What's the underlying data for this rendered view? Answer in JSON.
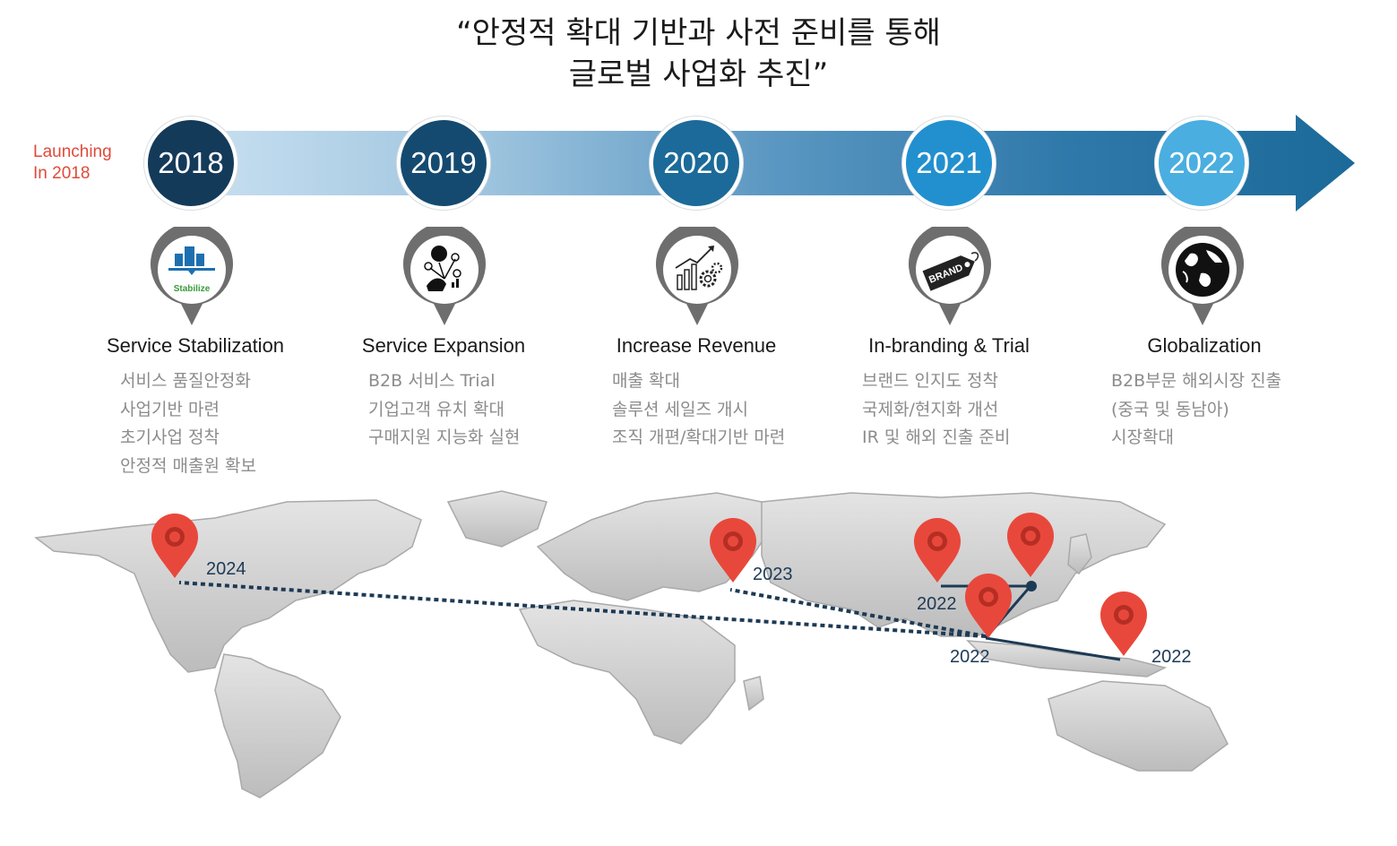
{
  "title": {
    "line1": "“안정적 확대 기반과 사전 준비를 통해",
    "line2": "글로벌 사업화 추진”"
  },
  "launch": {
    "line1": "Launching",
    "line2": "In 2018"
  },
  "colors": {
    "launch_text": "#e04a3a",
    "map_pin": "#e8483b",
    "route": "#1d3a55",
    "stage_text": "#8c8c8c"
  },
  "timeline": [
    {
      "year": "2018",
      "color": "#143a5a",
      "icon": "stabilize-chart-icon",
      "icon_label": "Stabilize",
      "title": "Service Stabilization",
      "items": [
        "서비스 품질안정화",
        "사업기반 마련",
        "초기사업 정착",
        "안정적 매출원 확보"
      ]
    },
    {
      "year": "2019",
      "color": "#154a70",
      "icon": "network-people-icon",
      "icon_label": "",
      "title": "Service Expansion",
      "items": [
        "B2B 서비스 Trial",
        "기업고객 유치 확대",
        "구매지원 지능화 실현"
      ]
    },
    {
      "year": "2020",
      "color": "#1b6a99",
      "icon": "growth-gear-icon",
      "icon_label": "",
      "title": "Increase Revenue",
      "items": [
        "매출 확대",
        "솔루션 세일즈 개시",
        "조직 개편/확대기반 마련"
      ]
    },
    {
      "year": "2021",
      "color": "#2290cf",
      "icon": "brand-tag-icon",
      "icon_label": "BRAND",
      "title": "In-branding & Trial",
      "items": [
        "브랜드 인지도 정착",
        "국제화/현지화 개선",
        "IR 및 해외 진출 준비"
      ]
    },
    {
      "year": "2022",
      "color": "#4aaee0",
      "icon": "globe-icon",
      "icon_label": "",
      "title": "Globalization",
      "items": [
        "B2B부문 해외시장 진출",
        "(중국 및 동남아)",
        "시장확대"
      ]
    }
  ],
  "map": {
    "labels": {
      "usa": "2024",
      "europe": "2023",
      "south_asia": "2022",
      "southeast_asia": "2022",
      "indonesia": "2022"
    }
  }
}
